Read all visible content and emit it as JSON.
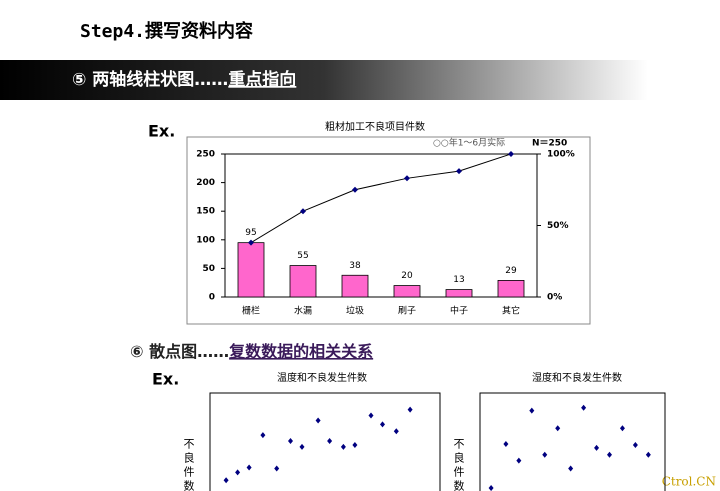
{
  "header": {
    "title": "Step4.撰写资料内容"
  },
  "banner": {
    "prefix": "⑤ 两轴线柱状图……",
    "emphasis": "重点指向"
  },
  "example_label_1": "Ex.",
  "section": {
    "prefix": "⑥ 散点图……",
    "emphasis": "复数数据的相关关系"
  },
  "example_label_2": "Ex.",
  "watermark": "Ctrol.CN",
  "chart_data": [
    {
      "type": "bar",
      "title": "粗材加工不良项目件数",
      "annotation": "○○年1～6月实际",
      "note": "N＝250",
      "categories": [
        "栅栏",
        "水漏",
        "垃圾",
        "刷子",
        "中子",
        "其它"
      ],
      "series": [
        {
          "type": "bar",
          "color": "#ff66cc",
          "values": [
            95,
            55,
            38,
            20,
            13,
            29
          ]
        },
        {
          "type": "line",
          "axis": "y2",
          "color": "#000080",
          "values": [
            38,
            60,
            75,
            83,
            88,
            100
          ]
        }
      ],
      "ylim": [
        0,
        250
      ],
      "yticks": [
        0,
        50,
        100,
        150,
        200,
        250
      ],
      "y2lim": [
        0,
        100
      ],
      "y2ticks": [
        {
          "value": 0,
          "label": "0%"
        },
        {
          "value": 50,
          "label": "50%"
        },
        {
          "value": 100,
          "label": "100%"
        }
      ]
    },
    {
      "type": "scatter",
      "title": "温度和不良发生件数",
      "ylabel": "不良件数",
      "color": "#000080",
      "x": [
        0.7,
        1.2,
        1.7,
        2.3,
        2.9,
        3.5,
        4.0,
        4.7,
        5.2,
        5.8,
        6.3,
        7.0,
        7.5,
        8.1,
        8.7
      ],
      "values": [
        1.1,
        1.9,
        2.4,
        5.7,
        2.3,
        5.1,
        4.5,
        7.2,
        5.1,
        4.5,
        4.7,
        7.7,
        6.8,
        6.1,
        8.3
      ],
      "xlim": [
        0,
        10
      ],
      "ylim": [
        0,
        10
      ]
    },
    {
      "type": "scatter",
      "title": "湿度和不良发生件数",
      "ylabel": "不良件数",
      "color": "#000080",
      "x": [
        0.6,
        1.4,
        2.1,
        2.8,
        3.5,
        4.2,
        4.9,
        5.6,
        6.3,
        7.0,
        7.7,
        8.4,
        9.1
      ],
      "values": [
        0.3,
        4.8,
        3.1,
        8.2,
        3.7,
        6.4,
        2.3,
        8.5,
        4.4,
        3.7,
        6.4,
        4.7,
        3.7
      ],
      "xlim": [
        0,
        10
      ],
      "ylim": [
        0,
        10
      ]
    }
  ]
}
